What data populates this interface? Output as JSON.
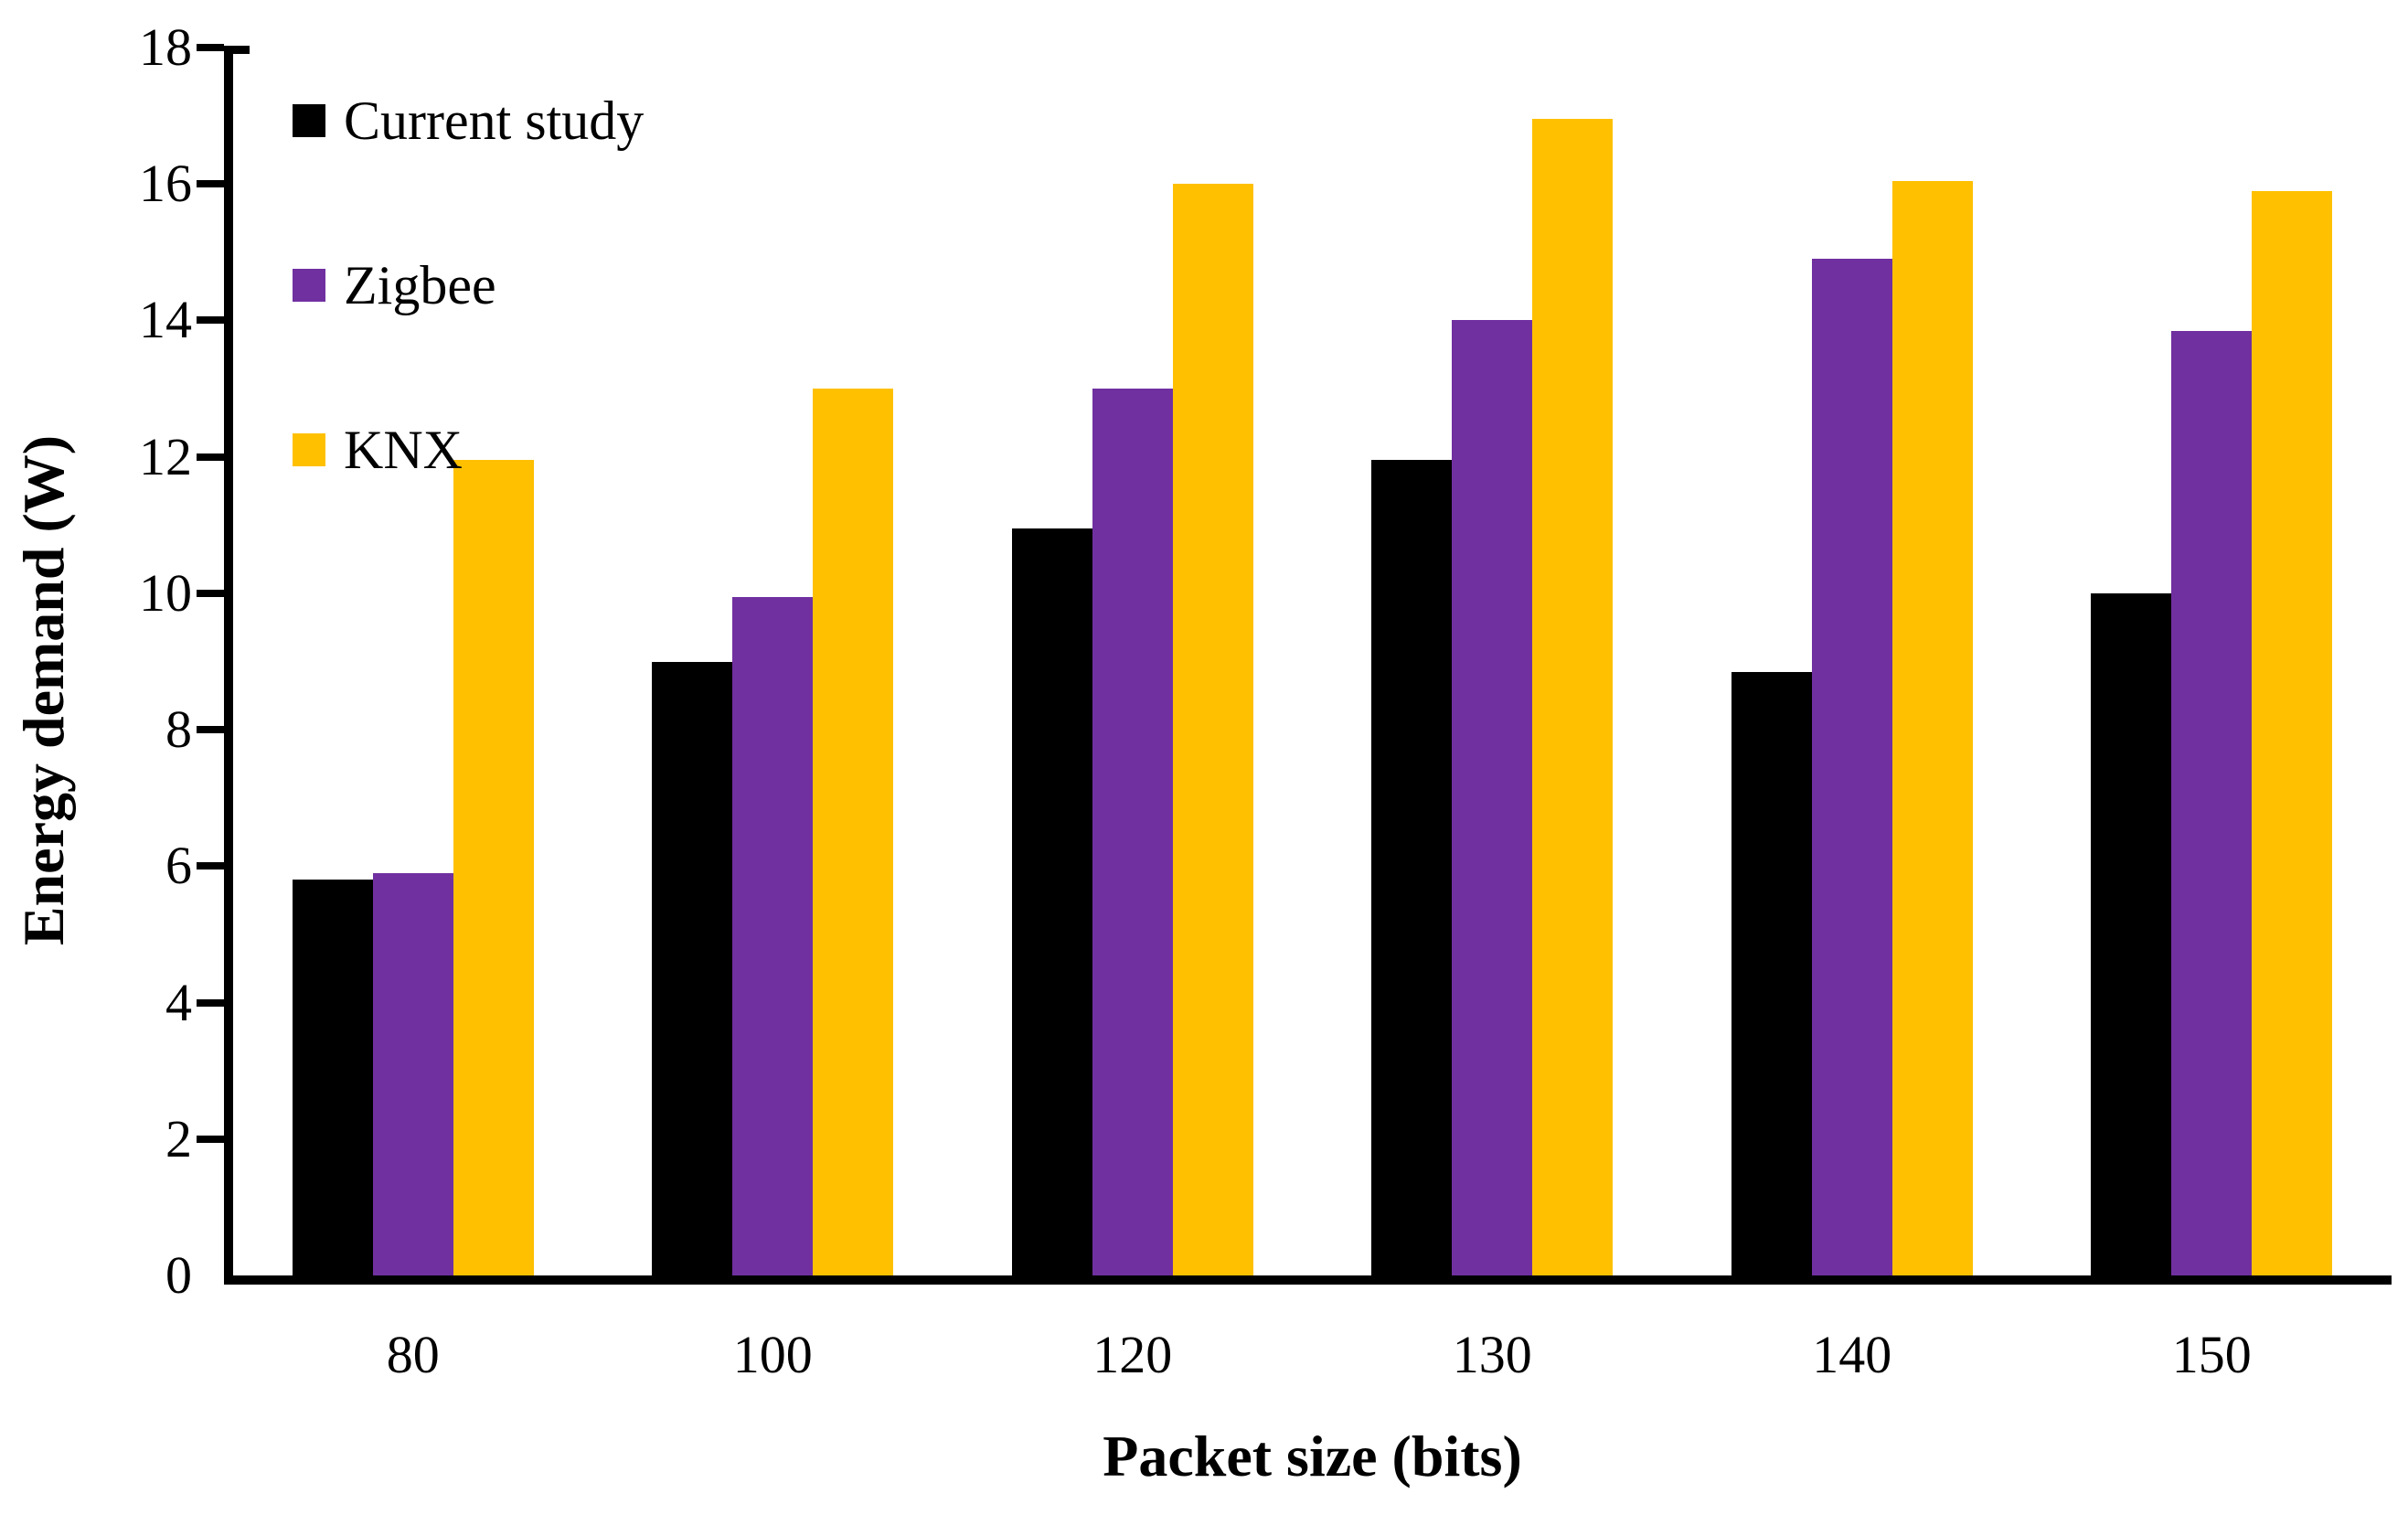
{
  "figure": {
    "background": "#ffffff",
    "axis_color": "#000000"
  },
  "chart_data": {
    "type": "bar",
    "title": "",
    "xlabel": "Packet size (bits)",
    "ylabel": "Energy demand (W)",
    "categories": [
      "80",
      "100",
      "120",
      "130",
      "140",
      "150"
    ],
    "series": [
      {
        "name": "Current study",
        "color": "#000000",
        "values": [
          5.8,
          9.0,
          10.95,
          11.95,
          8.85,
          10.0
        ]
      },
      {
        "name": "Zigbee",
        "color": "#7030A0",
        "values": [
          5.9,
          9.95,
          13.0,
          14.0,
          14.9,
          13.85
        ]
      },
      {
        "name": "KNX",
        "color": "#FFC000",
        "values": [
          11.95,
          13.0,
          16.0,
          16.95,
          16.05,
          15.9
        ]
      }
    ],
    "ylim": [
      0,
      18
    ],
    "yticks": [
      0,
      2,
      4,
      6,
      8,
      10,
      12,
      14,
      16,
      18
    ],
    "grid": false,
    "legend_position": "top-left-inside"
  }
}
